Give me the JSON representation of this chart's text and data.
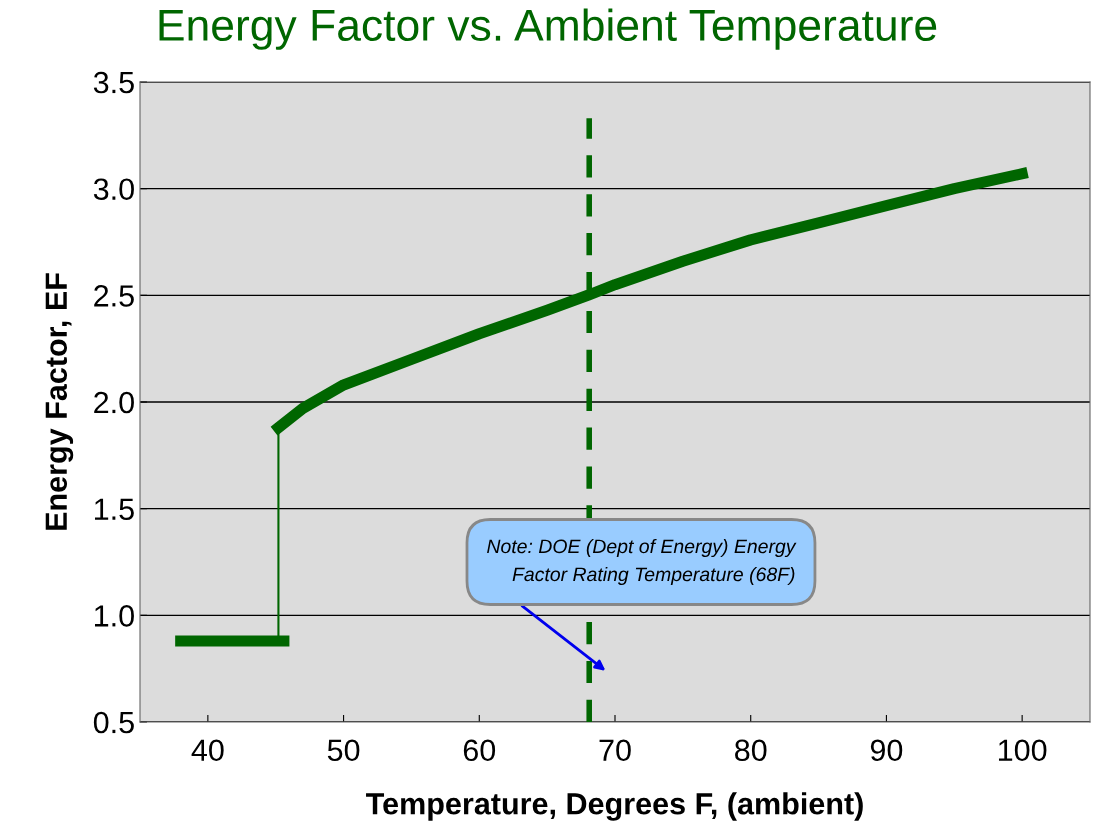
{
  "chart_data": {
    "type": "line",
    "title": "Energy Factor vs. Ambient Temperature",
    "xlabel": "Temperature, Degrees F, (ambient)",
    "ylabel": "Energy Factor, EF",
    "xlim": [
      35,
      105
    ],
    "xticks": [
      40,
      50,
      60,
      70,
      80,
      90,
      100
    ],
    "ylim": [
      0.5,
      3.5
    ],
    "yticks": [
      {
        "value": 0.5,
        "label": "0.5"
      },
      {
        "value": 1.0,
        "label": "1.0"
      },
      {
        "value": 1.5,
        "label": "1.5"
      },
      {
        "value": 2.0,
        "label": "2.0"
      },
      {
        "value": 2.5,
        "label": "2.5"
      },
      {
        "value": 3.0,
        "label": "3.0"
      },
      {
        "value": 3.5,
        "label": "3.5"
      }
    ],
    "grid": "y",
    "marker": "none",
    "series": [
      {
        "color": "#006600",
        "x": [
          38,
          45.6
        ],
        "values": [
          0.88,
          0.88
        ]
      },
      {
        "color": "#006600",
        "x": [
          45.2,
          45.2
        ],
        "values": [
          0.88,
          1.88
        ]
      },
      {
        "color": "#006600",
        "x": [
          45.2,
          47,
          50,
          55,
          60,
          65,
          68,
          70,
          75,
          80,
          85,
          90,
          95,
          100
        ],
        "values": [
          1.88,
          1.97,
          2.08,
          2.2,
          2.32,
          2.43,
          2.5,
          2.55,
          2.66,
          2.76,
          2.84,
          2.92,
          3.0,
          3.07
        ]
      },
      {
        "color": "#006600",
        "line_style": "dashed",
        "x": [
          68.1,
          68.1
        ],
        "values": [
          0.5,
          3.33
        ]
      }
    ],
    "annotations": [
      "Note: DOE (Dept of Energy) Energy Factor Rating Temperature (68F)"
    ]
  }
}
